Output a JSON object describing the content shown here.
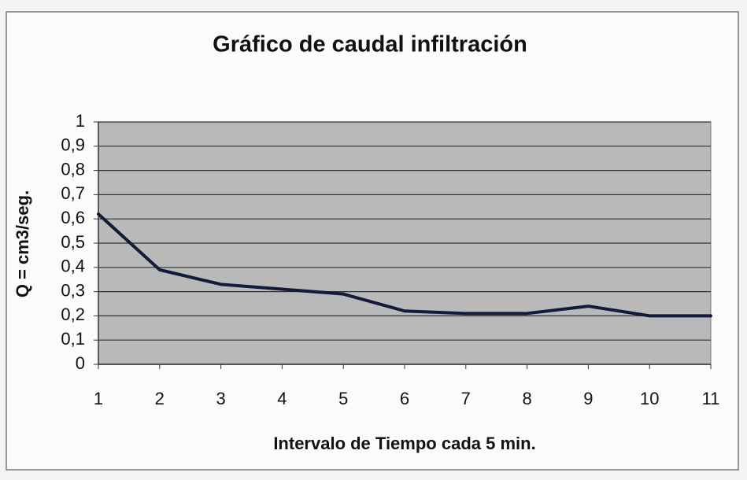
{
  "chart_data": {
    "type": "line",
    "title": "Gráfico de caudal infiltración",
    "x_label": "Intervalo de Tiempo cada 5 min.",
    "y_label": "Q = cm3/seg.",
    "x": [
      1,
      2,
      3,
      4,
      5,
      6,
      7,
      8,
      9,
      10,
      11
    ],
    "series": [
      {
        "name": "Q",
        "color": "#141a3a",
        "values": [
          0.62,
          0.39,
          0.33,
          0.31,
          0.29,
          0.22,
          0.21,
          0.21,
          0.24,
          0.2,
          0.2
        ]
      }
    ],
    "xlim": [
      1,
      11
    ],
    "xticks": [
      1,
      2,
      3,
      4,
      5,
      6,
      7,
      8,
      9,
      10,
      11
    ],
    "ylim": [
      0,
      1
    ],
    "yticks": [
      0,
      {
        "value": 0.1,
        "label": "0,1"
      },
      {
        "value": 0.2,
        "label": "0,2"
      },
      {
        "value": 0.3,
        "label": "0,3"
      },
      {
        "value": 0.4,
        "label": "0,4"
      },
      {
        "value": 0.5,
        "label": "0,5"
      },
      {
        "value": 0.6,
        "label": "0,6"
      },
      {
        "value": 0.7,
        "label": "0,7"
      },
      {
        "value": 0.8,
        "label": "0,8"
      },
      {
        "value": 0.9,
        "label": "0,9"
      },
      1
    ],
    "grid": true
  }
}
